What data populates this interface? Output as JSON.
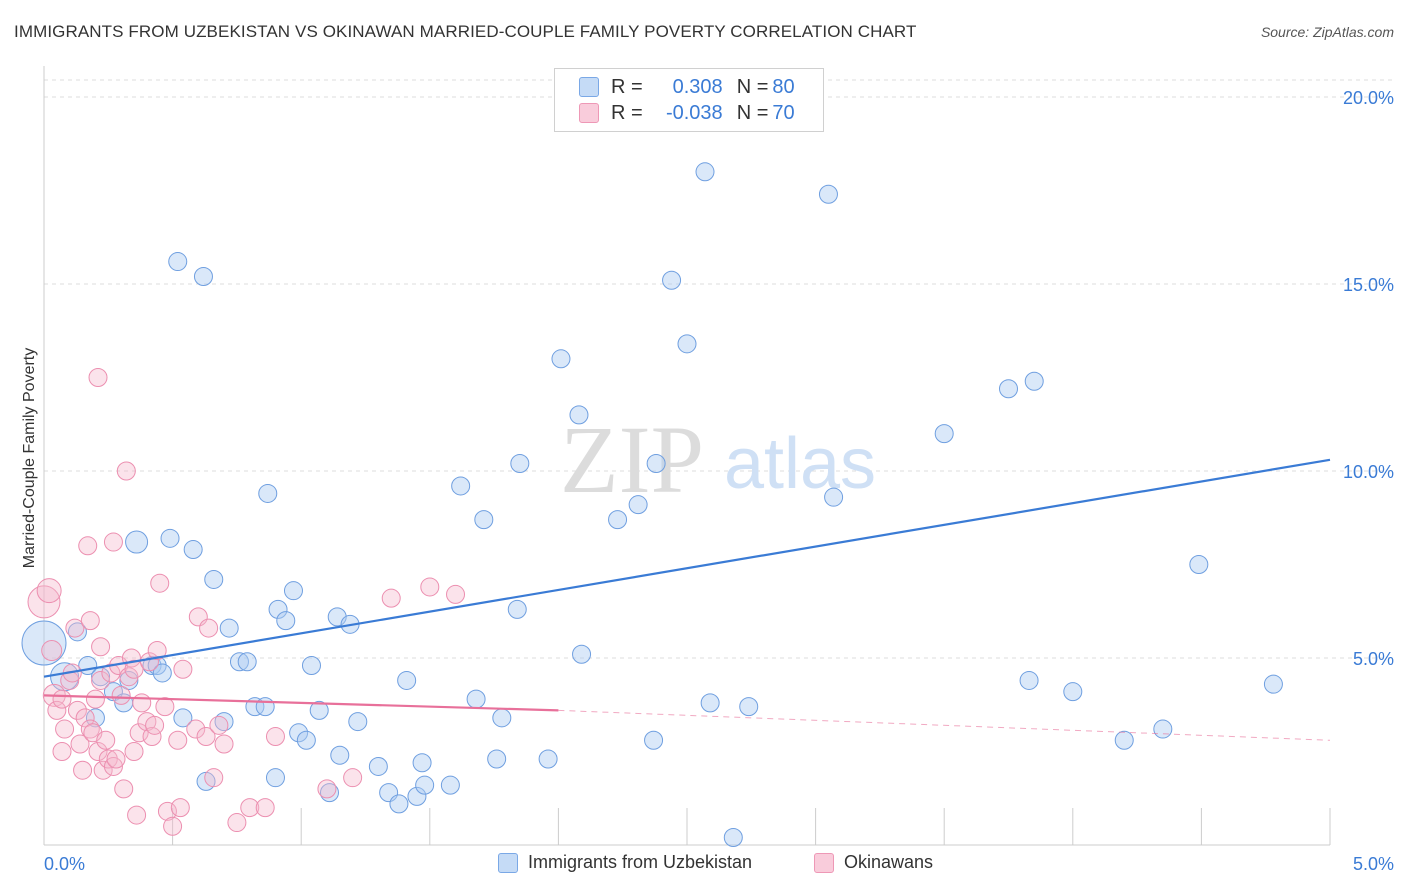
{
  "title": "IMMIGRANTS FROM UZBEKISTAN VS OKINAWAN MARRIED-COUPLE FAMILY POVERTY CORRELATION CHART",
  "source": "Source: ZipAtlas.com",
  "watermark": {
    "zip": "ZIP",
    "atlas": "atlas"
  },
  "colors": {
    "blue": "#3a7bd5",
    "blue_fill": "#aecbf2",
    "pink": "#e8709a",
    "pink_fill": "#f5b8cc",
    "value_text": "#3a7bd5"
  },
  "legend_top": [
    {
      "r_label": "R =",
      "r_value": "0.308",
      "n_label": "N =",
      "n_value": "80"
    },
    {
      "r_label": "R =",
      "r_value": "-0.038",
      "n_label": "N =",
      "n_value": "70"
    }
  ],
  "legend_bottom": [
    {
      "label": "Immigrants from Uzbekistan"
    },
    {
      "label": "Okinawans"
    }
  ],
  "chart_data": {
    "type": "scatter",
    "title": "IMMIGRANTS FROM UZBEKISTAN VS OKINAWAN MARRIED-COUPLE FAMILY POVERTY CORRELATION CHART",
    "xlabel": "",
    "ylabel": "Married-Couple Family Poverty",
    "xlim": [
      0,
      5
    ],
    "ylim": [
      0,
      20
    ],
    "x_tick_labels": [
      "0.0%",
      "5.0%"
    ],
    "y_ticks": [
      5,
      10,
      15,
      20
    ],
    "y_tick_labels": [
      "5.0%",
      "10.0%",
      "15.0%",
      "20.0%"
    ],
    "grid": true,
    "series": [
      {
        "name": "Immigrants from Uzbekistan",
        "color": "#3a7bd5",
        "points": [
          [
            0.0,
            5.4,
            22
          ],
          [
            0.08,
            4.5,
            14
          ],
          [
            0.13,
            5.7,
            9
          ],
          [
            0.17,
            4.8,
            9
          ],
          [
            0.2,
            3.4,
            9
          ],
          [
            0.22,
            4.5,
            9
          ],
          [
            0.27,
            4.1,
            9
          ],
          [
            0.31,
            3.8,
            9
          ],
          [
            0.33,
            4.4,
            9
          ],
          [
            0.36,
            8.1,
            11
          ],
          [
            0.42,
            4.8,
            9
          ],
          [
            0.44,
            4.8,
            9
          ],
          [
            0.46,
            4.6,
            9
          ],
          [
            0.49,
            8.2,
            9
          ],
          [
            0.52,
            15.6,
            9
          ],
          [
            0.54,
            3.4,
            9
          ],
          [
            0.58,
            7.9,
            9
          ],
          [
            0.62,
            15.2,
            9
          ],
          [
            0.63,
            1.7,
            9
          ],
          [
            0.66,
            7.1,
            9
          ],
          [
            0.7,
            3.3,
            9
          ],
          [
            0.72,
            5.8,
            9
          ],
          [
            0.76,
            4.9,
            9
          ],
          [
            0.79,
            4.9,
            9
          ],
          [
            0.82,
            3.7,
            9
          ],
          [
            0.86,
            3.7,
            9
          ],
          [
            0.87,
            9.4,
            9
          ],
          [
            0.91,
            6.3,
            9
          ],
          [
            0.94,
            6.0,
            9
          ],
          [
            0.97,
            6.8,
            9
          ],
          [
            0.99,
            3.0,
            9
          ],
          [
            1.02,
            2.8,
            9
          ],
          [
            1.04,
            4.8,
            9
          ],
          [
            1.07,
            3.6,
            9
          ],
          [
            1.11,
            1.4,
            9
          ],
          [
            1.14,
            6.1,
            9
          ],
          [
            1.15,
            2.4,
            9
          ],
          [
            1.19,
            5.9,
            9
          ],
          [
            1.22,
            3.3,
            9
          ],
          [
            1.3,
            2.1,
            9
          ],
          [
            1.34,
            1.4,
            9
          ],
          [
            1.38,
            1.1,
            9
          ],
          [
            1.41,
            4.4,
            9
          ],
          [
            1.45,
            1.3,
            9
          ],
          [
            1.47,
            2.2,
            9
          ],
          [
            1.48,
            1.6,
            9
          ],
          [
            1.58,
            1.6,
            9
          ],
          [
            1.62,
            9.6,
            9
          ],
          [
            1.68,
            3.9,
            9
          ],
          [
            1.71,
            8.7,
            9
          ],
          [
            1.76,
            2.3,
            9
          ],
          [
            1.78,
            3.4,
            9
          ],
          [
            1.84,
            6.3,
            9
          ],
          [
            1.85,
            10.2,
            9
          ],
          [
            1.96,
            2.3,
            9
          ],
          [
            2.01,
            13.0,
            9
          ],
          [
            2.08,
            11.5,
            9
          ],
          [
            2.09,
            5.1,
            9
          ],
          [
            2.23,
            8.7,
            9
          ],
          [
            2.31,
            9.1,
            9
          ],
          [
            2.37,
            2.8,
            9
          ],
          [
            2.38,
            10.2,
            9
          ],
          [
            2.44,
            15.1,
            9
          ],
          [
            2.5,
            13.4,
            9
          ],
          [
            2.57,
            18.0,
            9
          ],
          [
            2.59,
            3.8,
            9
          ],
          [
            2.68,
            0.2,
            9
          ],
          [
            2.74,
            3.7,
            9
          ],
          [
            3.05,
            17.4,
            9
          ],
          [
            3.07,
            9.3,
            9
          ],
          [
            3.5,
            11.0,
            9
          ],
          [
            3.75,
            12.2,
            9
          ],
          [
            3.83,
            4.4,
            9
          ],
          [
            3.85,
            12.4,
            9
          ],
          [
            4.0,
            4.1,
            9
          ],
          [
            4.2,
            2.8,
            9
          ],
          [
            4.35,
            3.1,
            9
          ],
          [
            4.49,
            7.5,
            9
          ],
          [
            4.78,
            4.3,
            9
          ],
          [
            0.9,
            1.8,
            9
          ]
        ]
      },
      {
        "name": "Okinawans",
        "color": "#e8709a",
        "points": [
          [
            0.0,
            6.5,
            16
          ],
          [
            0.02,
            6.8,
            12
          ],
          [
            0.03,
            5.2,
            10
          ],
          [
            0.04,
            4.0,
            11
          ],
          [
            0.05,
            3.6,
            9
          ],
          [
            0.07,
            3.9,
            9
          ],
          [
            0.07,
            2.5,
            9
          ],
          [
            0.08,
            3.1,
            9
          ],
          [
            0.1,
            4.4,
            9
          ],
          [
            0.11,
            4.6,
            9
          ],
          [
            0.12,
            5.8,
            9
          ],
          [
            0.13,
            3.6,
            9
          ],
          [
            0.14,
            2.7,
            9
          ],
          [
            0.15,
            2.0,
            9
          ],
          [
            0.16,
            3.4,
            9
          ],
          [
            0.17,
            8.0,
            9
          ],
          [
            0.18,
            3.1,
            9
          ],
          [
            0.18,
            6.0,
            9
          ],
          [
            0.19,
            3.0,
            9
          ],
          [
            0.2,
            3.9,
            9
          ],
          [
            0.21,
            12.5,
            9
          ],
          [
            0.21,
            2.5,
            9
          ],
          [
            0.22,
            4.4,
            9
          ],
          [
            0.22,
            5.3,
            9
          ],
          [
            0.23,
            2.0,
            9
          ],
          [
            0.24,
            2.8,
            9
          ],
          [
            0.25,
            2.3,
            9
          ],
          [
            0.26,
            4.6,
            9
          ],
          [
            0.27,
            8.1,
            9
          ],
          [
            0.27,
            2.1,
            9
          ],
          [
            0.28,
            2.3,
            9
          ],
          [
            0.29,
            4.8,
            9
          ],
          [
            0.3,
            4.0,
            9
          ],
          [
            0.31,
            1.5,
            9
          ],
          [
            0.32,
            10.0,
            9
          ],
          [
            0.33,
            4.5,
            9
          ],
          [
            0.34,
            5.0,
            9
          ],
          [
            0.35,
            4.7,
            9
          ],
          [
            0.35,
            2.5,
            9
          ],
          [
            0.36,
            0.8,
            9
          ],
          [
            0.37,
            3.0,
            9
          ],
          [
            0.38,
            3.8,
            9
          ],
          [
            0.4,
            3.3,
            9
          ],
          [
            0.41,
            4.9,
            9
          ],
          [
            0.42,
            2.9,
            9
          ],
          [
            0.43,
            3.2,
            9
          ],
          [
            0.44,
            5.2,
            9
          ],
          [
            0.45,
            7.0,
            9
          ],
          [
            0.47,
            3.7,
            9
          ],
          [
            0.48,
            0.9,
            9
          ],
          [
            0.5,
            0.5,
            9
          ],
          [
            0.52,
            2.8,
            9
          ],
          [
            0.53,
            1.0,
            9
          ],
          [
            0.54,
            4.7,
            9
          ],
          [
            0.59,
            3.1,
            9
          ],
          [
            0.6,
            6.1,
            9
          ],
          [
            0.63,
            2.9,
            9
          ],
          [
            0.64,
            5.8,
            9
          ],
          [
            0.66,
            1.8,
            9
          ],
          [
            0.68,
            3.2,
            9
          ],
          [
            0.7,
            2.7,
            9
          ],
          [
            0.75,
            0.6,
            9
          ],
          [
            0.8,
            1.0,
            9
          ],
          [
            0.86,
            1.0,
            9
          ],
          [
            0.9,
            2.9,
            9
          ],
          [
            1.1,
            1.5,
            9
          ],
          [
            1.2,
            1.8,
            9
          ],
          [
            1.35,
            6.6,
            9
          ],
          [
            1.5,
            6.9,
            9
          ],
          [
            1.6,
            6.7,
            9
          ]
        ]
      }
    ],
    "trendlines": [
      {
        "series": "Immigrants from Uzbekistan",
        "x": [
          0.0,
          5.0
        ],
        "y": [
          4.5,
          10.3
        ],
        "style": "solid"
      },
      {
        "series": "Okinawans",
        "x": [
          0.0,
          2.0
        ],
        "y": [
          4.0,
          3.6
        ],
        "style": "solid"
      },
      {
        "series": "Okinawans",
        "x": [
          2.0,
          5.0
        ],
        "y": [
          3.6,
          2.8
        ],
        "style": "dashed"
      }
    ]
  }
}
